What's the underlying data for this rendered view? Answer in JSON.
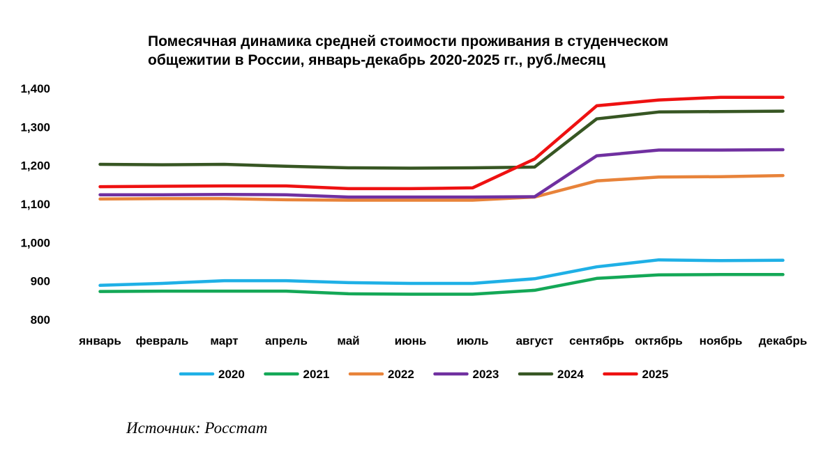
{
  "chart_data": {
    "type": "line",
    "title": [
      "Помесячная динамика средней стоимости проживания в студенческом",
      "общежитии в России, январь-декабрь 2020-2025 гг., руб./месяц"
    ],
    "xlabel": "",
    "ylabel": "",
    "ylim": [
      800,
      1400
    ],
    "yticks": [
      800,
      900,
      1000,
      1100,
      1200,
      1300,
      1400
    ],
    "ytick_labels": [
      "800",
      "900",
      "1,000",
      "1,100",
      "1,200",
      "1,300",
      "1,400"
    ],
    "grid": false,
    "legend_position": "bottom",
    "categories": [
      "январь",
      "февраль",
      "март",
      "апрель",
      "май",
      "июнь",
      "июль",
      "август",
      "сентябрь",
      "октябрь",
      "ноябрь",
      "декабрь"
    ],
    "series": [
      {
        "name": "2020",
        "color": "#1fb0e6",
        "values": [
          889,
          894,
          901,
          901,
          896,
          894,
          894,
          906,
          937,
          955,
          953,
          954
        ]
      },
      {
        "name": "2021",
        "color": "#14a857",
        "values": [
          873,
          874,
          874,
          874,
          867,
          866,
          866,
          876,
          907,
          916,
          917,
          917
        ]
      },
      {
        "name": "2022",
        "color": "#e8833a",
        "values": [
          1113,
          1114,
          1114,
          1111,
          1110,
          1110,
          1110,
          1118,
          1160,
          1170,
          1171,
          1174
        ]
      },
      {
        "name": "2023",
        "color": "#7030a0",
        "values": [
          1124,
          1124,
          1125,
          1124,
          1118,
          1118,
          1118,
          1119,
          1225,
          1240,
          1240,
          1241
        ]
      },
      {
        "name": "2024",
        "color": "#375623",
        "values": [
          1203,
          1202,
          1203,
          1198,
          1194,
          1193,
          1194,
          1196,
          1321,
          1339,
          1340,
          1341
        ]
      },
      {
        "name": "2025",
        "color": "#ee1111",
        "values": [
          1145,
          1146,
          1147,
          1147,
          1140,
          1140,
          1142,
          1217,
          1355,
          1370,
          1377,
          1377
        ]
      }
    ]
  },
  "source": "Источник: Росстат"
}
